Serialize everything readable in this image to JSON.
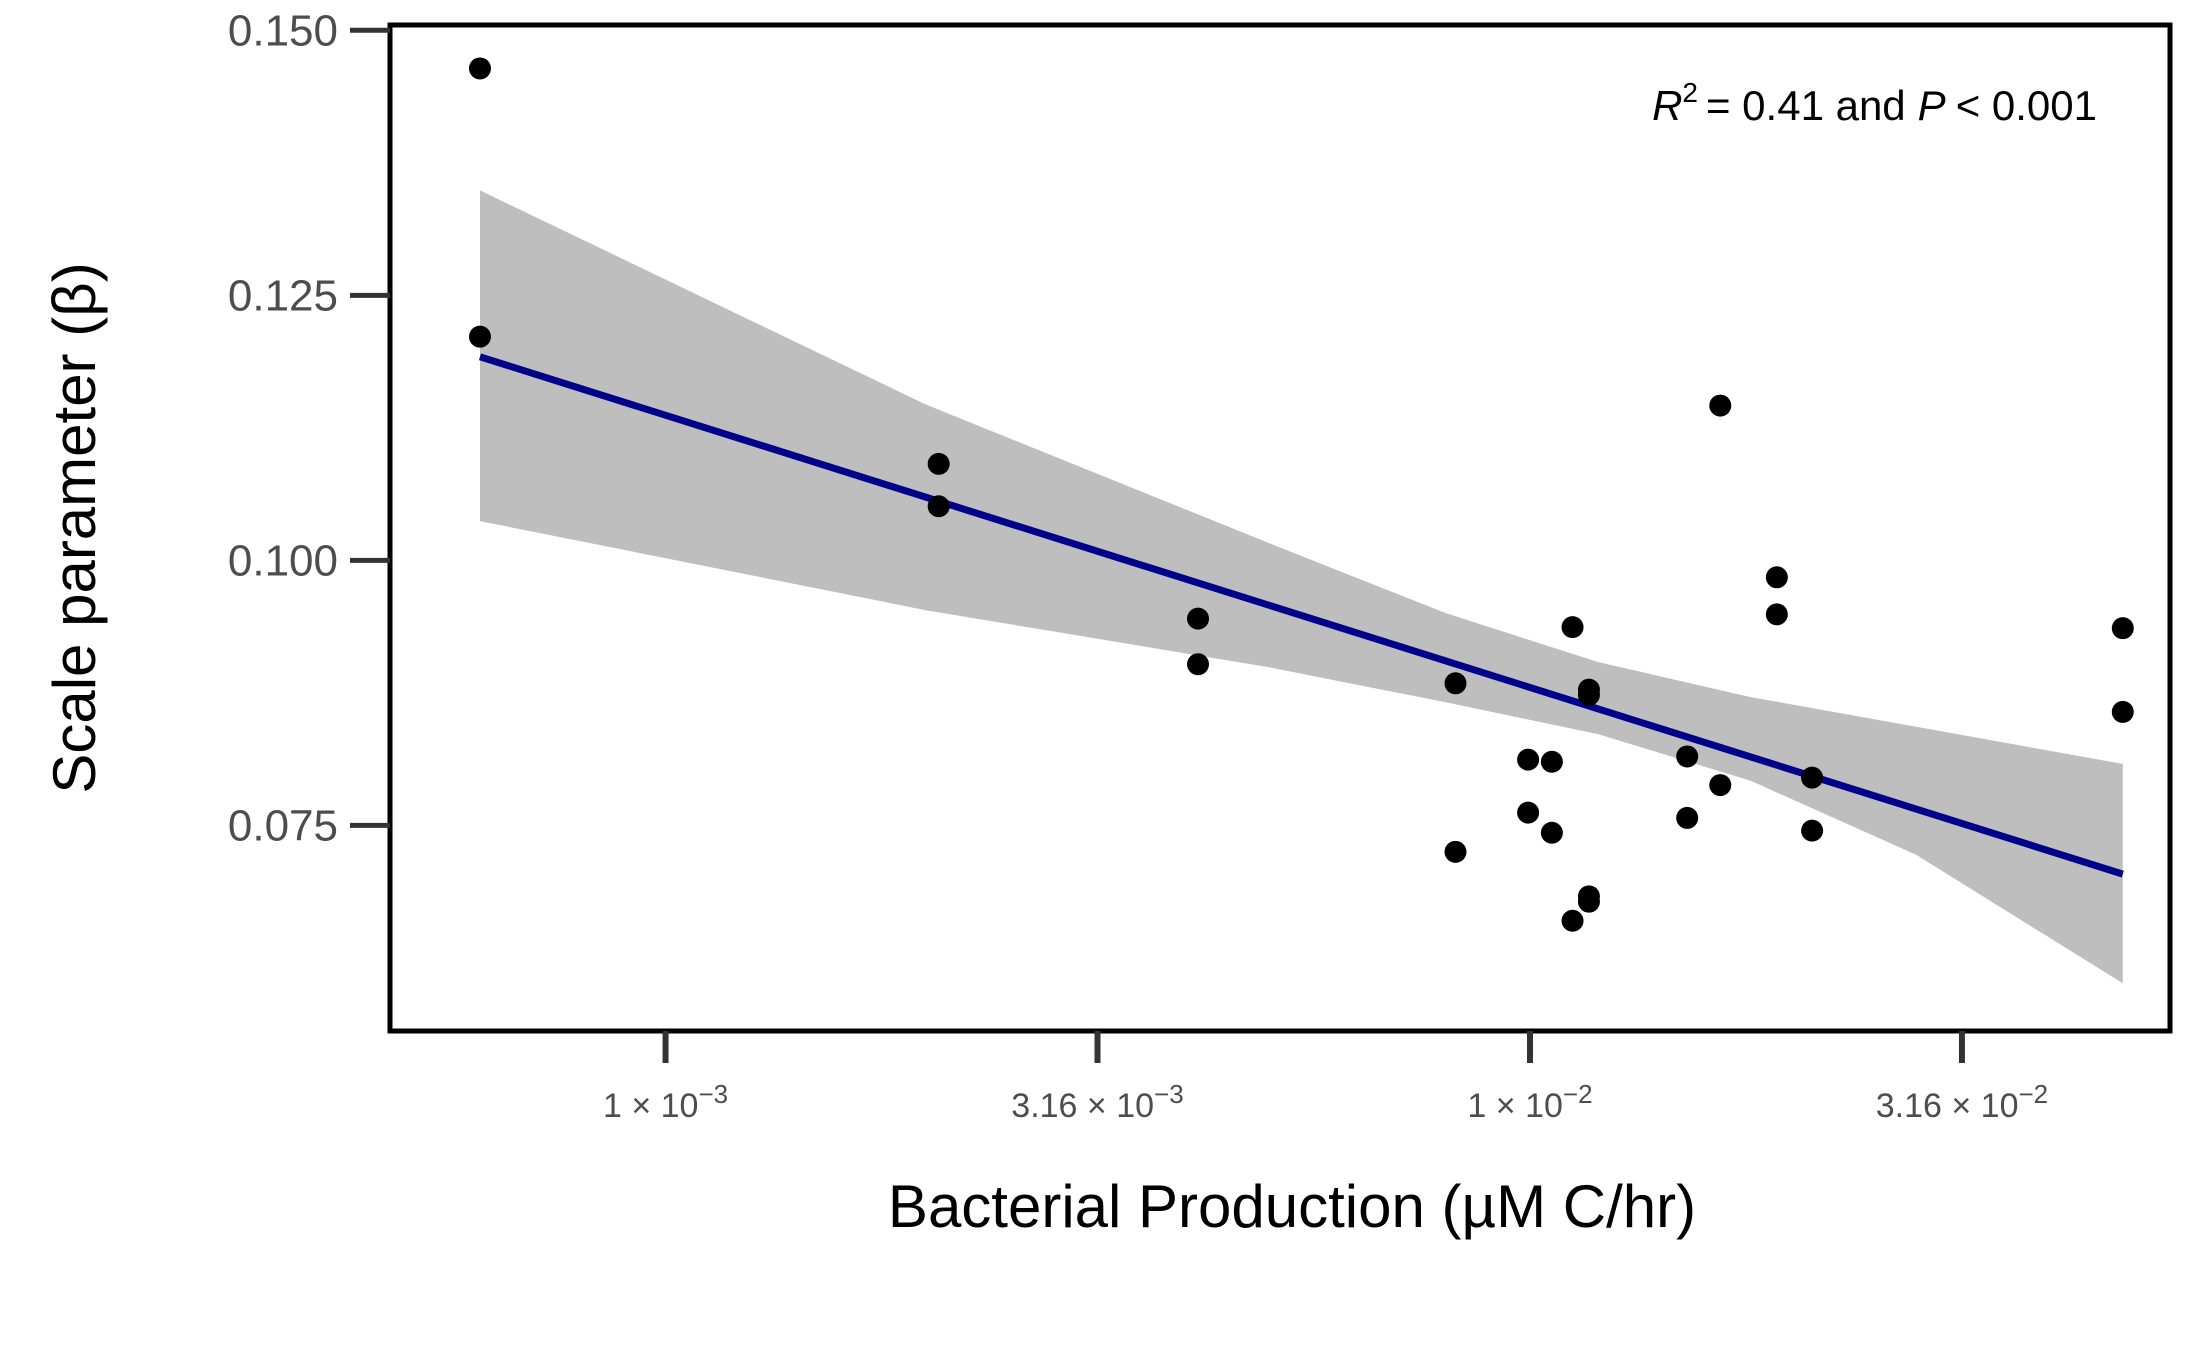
{
  "chart_data": {
    "type": "scatter",
    "xlabel": "Bacterial Production (µM C/hr)",
    "ylabel": "Scale parameter (β)",
    "x_scale": "log10",
    "xlim": [
      0.00048,
      0.055
    ],
    "ylim": [
      0.0556,
      0.1505
    ],
    "yticks": [
      0.075,
      0.1,
      0.125,
      0.15
    ],
    "ytick_labels": [
      "0.075",
      "0.100",
      "0.125",
      "0.150"
    ],
    "xticks": [
      0.001,
      0.00316,
      0.01,
      0.0316
    ],
    "xtick_labels": [
      {
        "mantissa": "1",
        "exponent": "−3"
      },
      {
        "mantissa": "3.16",
        "exponent": "−3"
      },
      {
        "mantissa": "1",
        "exponent": "−2"
      },
      {
        "mantissa": "3.16",
        "exponent": "−2"
      }
    ],
    "grid": false,
    "annotation": {
      "r_label": "R",
      "r_sup": "2",
      "text1": "= 0.41 and",
      "p_label": "P",
      "text2": "< 0.001"
    },
    "points": [
      {
        "x": 0.00061,
        "y": 0.1464
      },
      {
        "x": 0.00061,
        "y": 0.1211
      },
      {
        "x": 0.00207,
        "y": 0.1091
      },
      {
        "x": 0.00207,
        "y": 0.1051
      },
      {
        "x": 0.00413,
        "y": 0.0945
      },
      {
        "x": 0.00413,
        "y": 0.0902
      },
      {
        "x": 0.0082,
        "y": 0.0884
      },
      {
        "x": 0.0082,
        "y": 0.0725
      },
      {
        "x": 0.00995,
        "y": 0.0812
      },
      {
        "x": 0.00995,
        "y": 0.0762
      },
      {
        "x": 0.0106,
        "y": 0.081
      },
      {
        "x": 0.0106,
        "y": 0.0743
      },
      {
        "x": 0.0112,
        "y": 0.0937
      },
      {
        "x": 0.0112,
        "y": 0.066
      },
      {
        "x": 0.0117,
        "y": 0.0878
      },
      {
        "x": 0.0117,
        "y": 0.0873
      },
      {
        "x": 0.0117,
        "y": 0.0683
      },
      {
        "x": 0.0117,
        "y": 0.0678
      },
      {
        "x": 0.0152,
        "y": 0.0815
      },
      {
        "x": 0.0152,
        "y": 0.0757
      },
      {
        "x": 0.0166,
        "y": 0.1146
      },
      {
        "x": 0.0166,
        "y": 0.0788
      },
      {
        "x": 0.0193,
        "y": 0.0984
      },
      {
        "x": 0.0193,
        "y": 0.0949
      },
      {
        "x": 0.0212,
        "y": 0.0795
      },
      {
        "x": 0.0212,
        "y": 0.0745
      },
      {
        "x": 0.0485,
        "y": 0.0936
      },
      {
        "x": 0.0485,
        "y": 0.0857
      }
    ],
    "fit_line": {
      "x": [
        0.00061,
        0.0485
      ],
      "y": [
        0.1192,
        0.0704
      ],
      "color": "#00008B"
    },
    "confidence_band": {
      "x": [
        0.00061,
        0.002,
        0.005,
        0.008,
        0.012,
        0.018,
        0.028,
        0.0485
      ],
      "upper": [
        0.1349,
        0.1147,
        0.1016,
        0.095,
        0.0904,
        0.0871,
        0.0843,
        0.0808
      ],
      "lower": [
        0.1037,
        0.0953,
        0.0899,
        0.0866,
        0.0836,
        0.0792,
        0.0722,
        0.0601
      ],
      "color": "#BEBEBE"
    },
    "point_color": "#000000"
  }
}
